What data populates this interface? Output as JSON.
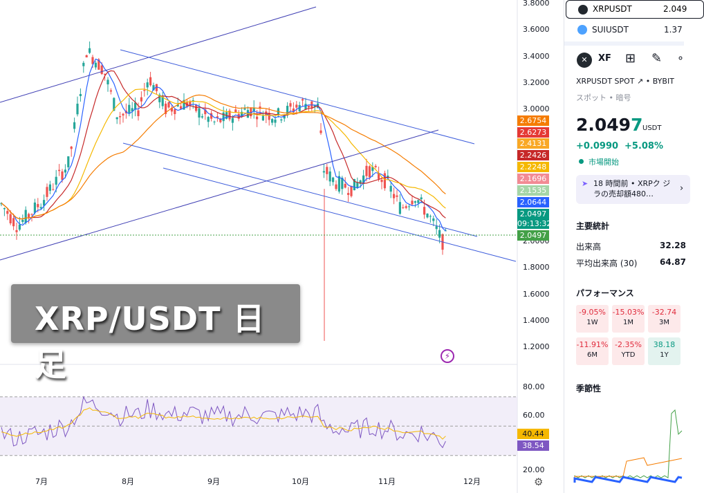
{
  "chart": {
    "overlay_title": "XRP/USDT 日 足",
    "price_axis": [
      "3.8000",
      "3.6000",
      "3.4000",
      "3.2000",
      "3.0000",
      "2.0000",
      "1.8000",
      "1.6000",
      "1.4000",
      "1.2000"
    ],
    "rsi_axis": [
      "80.00",
      "60.00",
      "20.00"
    ],
    "months": [
      "7月",
      "8月",
      "9月",
      "10月",
      "11月",
      "12月"
    ],
    "price_tags": [
      {
        "text": "2.6754",
        "color": "#f57c00"
      },
      {
        "text": "2.6273",
        "color": "#e53935"
      },
      {
        "text": "2.4131",
        "color": "#f9a825"
      },
      {
        "text": "2.2426",
        "color": "#c62828"
      },
      {
        "text": "2.2248",
        "color": "#f5b800"
      },
      {
        "text": "2.1696",
        "color": "#f28b94"
      },
      {
        "text": "2.1535",
        "color": "#a5d6a7"
      },
      {
        "text": "2.0644",
        "color": "#2962ff"
      },
      {
        "text": "2.0497",
        "color": "#089981"
      },
      {
        "text": "09:13:32",
        "color": "#089981"
      },
      {
        "text": "2.0497",
        "color": "#43a047"
      }
    ],
    "rsi_tags": [
      {
        "text": "40.44",
        "color": "#f5b800"
      },
      {
        "text": "38.54",
        "color": "#7e57c2"
      }
    ]
  },
  "watchlist": [
    {
      "symbol": "XRPUSDT",
      "price": "2.049"
    },
    {
      "symbol": "SUIUSDT",
      "price": "1.37"
    }
  ],
  "details": {
    "symbol_short": "XF",
    "exchange_line": "XRPUSDT SPOT",
    "exchange": "BYBIT",
    "category": "スポット • 暗号",
    "price_main": "2.049",
    "price_last_digit": "7",
    "currency": "USDT",
    "change_abs": "+0.0990",
    "change_pct": "+5.08%",
    "market_status": "市場開始",
    "news": "18 時間前 • XRPク ジラの売却額480…",
    "key_stats_title": "主要統計",
    "volume_label": "出来高",
    "volume_value": "32.28",
    "avg_volume_label": "平均出来高 (30)",
    "avg_volume_value": "64.87",
    "performance_title": "パフォーマンス",
    "performance": [
      {
        "value": "-9.05%",
        "period": "1W",
        "tone": "neg"
      },
      {
        "value": "-15.03%",
        "period": "1M",
        "tone": "neg"
      },
      {
        "value": "-32.74",
        "period": "3M",
        "tone": "neg"
      },
      {
        "value": "-11.91%",
        "period": "6M",
        "tone": "neg"
      },
      {
        "value": "-2.35%",
        "period": "YTD",
        "tone": "neg"
      },
      {
        "value": "38.18",
        "period": "1Y",
        "tone": "pos"
      }
    ],
    "seasonality_title": "季節性"
  }
}
